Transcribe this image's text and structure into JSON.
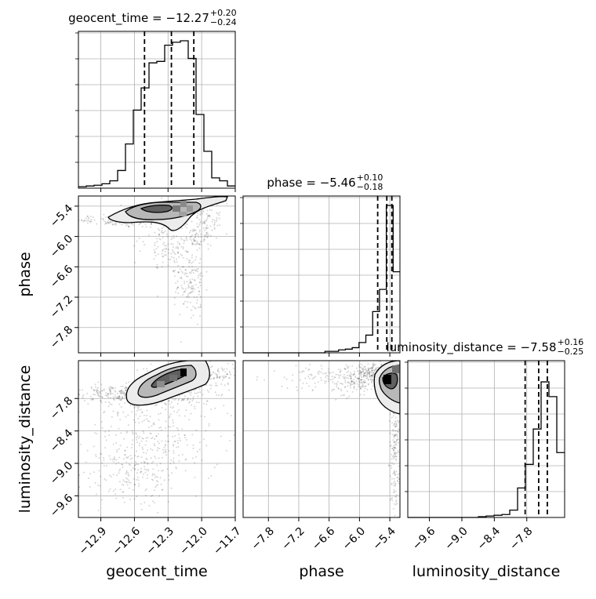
{
  "chart_data": {
    "type": "corner",
    "parameters": [
      "geocent_time",
      "phase",
      "luminosity_distance"
    ],
    "titles": [
      {
        "param": "geocent_time",
        "median": "−12.27",
        "upper": "+0.20",
        "lower": "−0.24",
        "label": "geocent_time = −12.27"
      },
      {
        "param": "phase",
        "median": "−5.46",
        "upper": "+0.10",
        "lower": "−0.18",
        "label": "phase = −5.46"
      },
      {
        "param": "luminosity_distance",
        "median": "−7.58",
        "upper": "+0.16",
        "lower": "−0.25",
        "label": "luminosity_distance = −7.58"
      }
    ],
    "ranges": {
      "geocent_time": [
        -13.1,
        -11.7
      ],
      "phase": [
        -8.3,
        -5.2
      ],
      "luminosity_distance": [
        -10.0,
        -7.1
      ]
    },
    "ticks": {
      "geocent_time": [
        "−12.9",
        "−12.6",
        "−12.3",
        "−12.0",
        "−11.7"
      ],
      "phase": [
        "−7.8",
        "−7.2",
        "−6.6",
        "−6.0",
        "−5.4"
      ],
      "luminosity_distance": [
        "−9.6",
        "−9.0",
        "−8.4",
        "−7.8"
      ]
    },
    "tick_values": {
      "geocent_time": [
        -12.9,
        -12.6,
        -12.3,
        -12.0,
        -11.7
      ],
      "phase": [
        -7.8,
        -7.2,
        -6.6,
        -6.0,
        -5.4
      ],
      "luminosity_distance": [
        -9.6,
        -9.0,
        -8.4,
        -7.8
      ]
    },
    "quantiles": {
      "geocent_time": [
        -12.51,
        -12.27,
        -12.07
      ],
      "phase": [
        -5.64,
        -5.46,
        -5.36
      ],
      "luminosity_distance": [
        -7.83,
        -7.58,
        -7.42
      ]
    },
    "histograms": {
      "geocent_time": [
        0.01,
        0.015,
        0.02,
        0.03,
        0.05,
        0.12,
        0.3,
        0.53,
        0.68,
        0.85,
        0.86,
        0.97,
        0.99,
        1.0,
        0.88,
        0.5,
        0.25,
        0.07,
        0.05,
        0.015
      ],
      "phase": [
        0.0,
        0.0,
        0.0,
        0.0,
        0.0,
        0.0,
        0.0,
        0.0,
        0.0,
        0.0,
        0.0,
        0.0,
        0.01,
        0.01,
        0.02,
        0.025,
        0.035,
        0.07,
        0.12,
        0.28,
        0.43,
        1.0,
        0.55
      ],
      "luminosity_distance": [
        0.0,
        0.0,
        0.0,
        0.0,
        0.0,
        0.0,
        0.0,
        0.0,
        0.0,
        0.005,
        0.01,
        0.015,
        0.02,
        0.05,
        0.2,
        0.36,
        0.6,
        0.92,
        0.82,
        0.44
      ]
    },
    "grid": true,
    "xlabels": [
      "geocent_time",
      "phase",
      "luminosity_distance"
    ],
    "ylabels": [
      "phase",
      "luminosity_distance"
    ]
  }
}
